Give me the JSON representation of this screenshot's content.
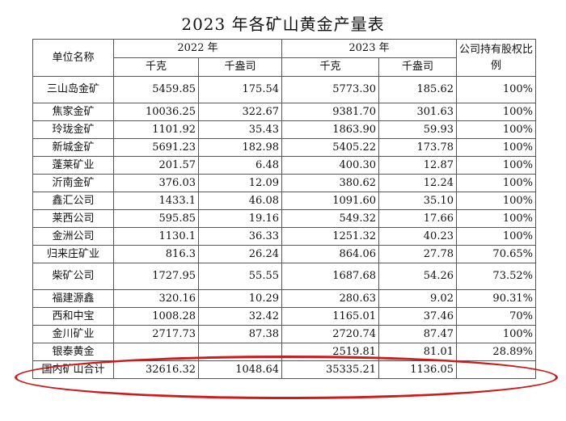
{
  "title": "2023 年各矿山黄金产量表",
  "headers": {
    "unit_name": "单位名称",
    "year_2022": "2022 年",
    "year_2023": "2023 年",
    "ownership": "公司持有股权比例",
    "kg_2022": "千克",
    "oz_2022": "千盎司",
    "kg_2023": "千克",
    "oz_2023": "千盎司"
  },
  "rows": [
    {
      "name": "三山岛金矿",
      "kg2022": "5459.85",
      "oz2022": "175.54",
      "kg2023": "5773.30",
      "oz2023": "185.62",
      "share": "100%"
    },
    {
      "name": "焦家金矿",
      "kg2022": "10036.25",
      "oz2022": "322.67",
      "kg2023": "9381.70",
      "oz2023": "301.63",
      "share": "100%"
    },
    {
      "name": "玲珑金矿",
      "kg2022": "1101.92",
      "oz2022": "35.43",
      "kg2023": "1863.90",
      "oz2023": "59.93",
      "share": "100%"
    },
    {
      "name": "新城金矿",
      "kg2022": "5691.23",
      "oz2022": "182.98",
      "kg2023": "5405.22",
      "oz2023": "173.78",
      "share": "100%"
    },
    {
      "name": "蓬莱矿业",
      "kg2022": "201.57",
      "oz2022": "6.48",
      "kg2023": "400.30",
      "oz2023": "12.87",
      "share": "100%"
    },
    {
      "name": "沂南金矿",
      "kg2022": "376.03",
      "oz2022": "12.09",
      "kg2023": "380.62",
      "oz2023": "12.24",
      "share": "100%"
    },
    {
      "name": "鑫汇公司",
      "kg2022": "1433.1",
      "oz2022": "46.08",
      "kg2023": "1091.60",
      "oz2023": "35.10",
      "share": "100%"
    },
    {
      "name": "莱西公司",
      "kg2022": "595.85",
      "oz2022": "19.16",
      "kg2023": "549.32",
      "oz2023": "17.66",
      "share": "100%"
    },
    {
      "name": "金洲公司",
      "kg2022": "1130.1",
      "oz2022": "36.33",
      "kg2023": "1251.32",
      "oz2023": "40.23",
      "share": "100%"
    },
    {
      "name": "归来庄矿业",
      "kg2022": "816.3",
      "oz2022": "26.24",
      "kg2023": "864.06",
      "oz2023": "27.78",
      "share": "70.65%"
    },
    {
      "name": "柴矿公司",
      "kg2022": "1727.95",
      "oz2022": "55.55",
      "kg2023": "1687.68",
      "oz2023": "54.26",
      "share": "73.52%"
    },
    {
      "name": "福建源鑫",
      "kg2022": "320.16",
      "oz2022": "10.29",
      "kg2023": "280.63",
      "oz2023": "9.02",
      "share": "90.31%"
    },
    {
      "name": "西和中宝",
      "kg2022": "1008.28",
      "oz2022": "32.42",
      "kg2023": "1165.01",
      "oz2023": "37.46",
      "share": "70%"
    },
    {
      "name": "金川矿业",
      "kg2022": "2717.73",
      "oz2022": "87.38",
      "kg2023": "2720.74",
      "oz2023": "87.47",
      "share": "100%"
    },
    {
      "name": "银泰黄金",
      "kg2022": "",
      "oz2022": "",
      "kg2023": "2519.81",
      "oz2023": "81.01",
      "share": "28.89%"
    }
  ],
  "total": {
    "name": "国内矿山合计",
    "kg2022": "32616.32",
    "oz2022": "1048.64",
    "kg2023": "35335.21",
    "oz2023": "1136.05",
    "share": ""
  },
  "annotation_color": "#cc1b1b"
}
